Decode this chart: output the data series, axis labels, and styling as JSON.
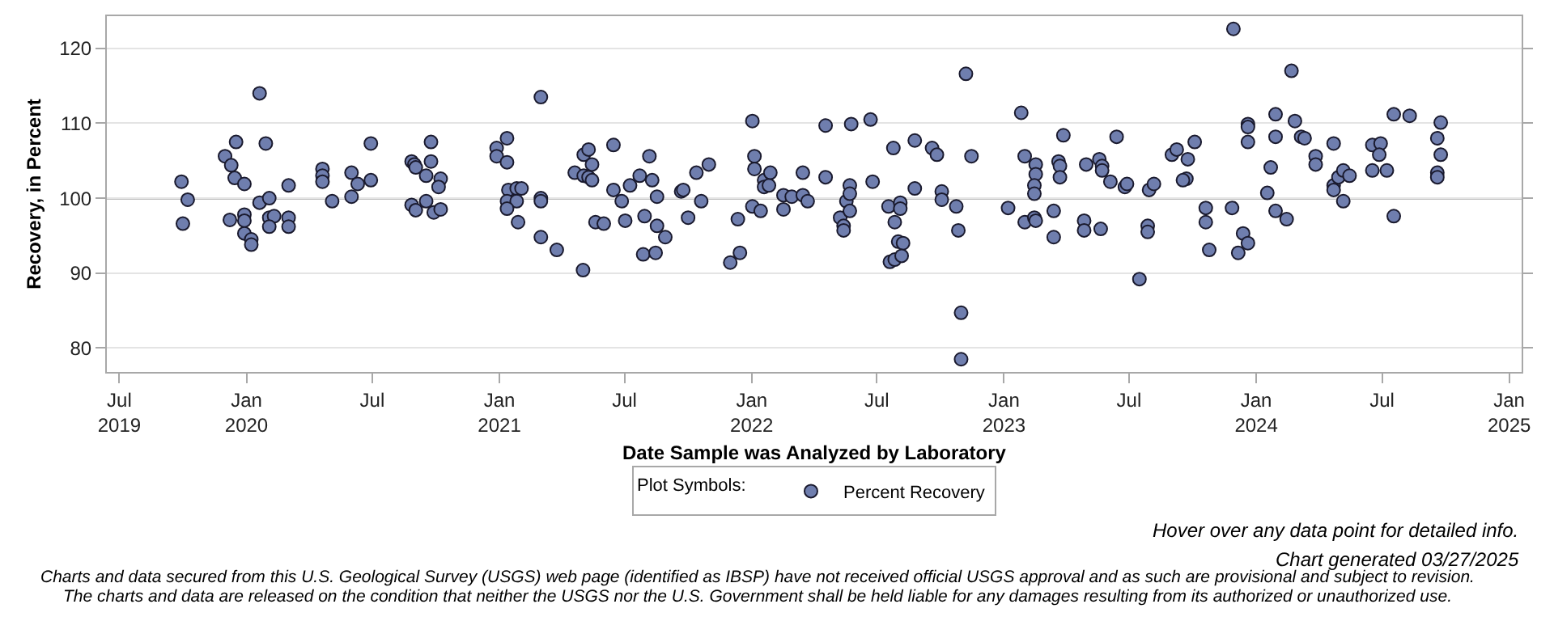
{
  "chart_data": {
    "type": "scatter",
    "xlabel": "Date Sample was Analyzed by Laboratory",
    "ylabel": "Recovery, in Percent",
    "legend_title": "Plot Symbols:",
    "legend": "bottom",
    "grid": "y",
    "marker": "circle",
    "xlim": [
      "2019-06-13",
      "2025-01-19"
    ],
    "xticks": [
      {
        "value": "2019-07-01",
        "label": "Jul\n2019"
      },
      {
        "value": "2020-01-01",
        "label": "Jan\n2020"
      },
      {
        "value": "2020-07-01",
        "label": "Jul"
      },
      {
        "value": "2021-01-01",
        "label": "Jan\n2021"
      },
      {
        "value": "2021-07-01",
        "label": "Jul"
      },
      {
        "value": "2022-01-01",
        "label": "Jan\n2022"
      },
      {
        "value": "2022-07-01",
        "label": "Jul"
      },
      {
        "value": "2023-01-01",
        "label": "Jan\n2023"
      },
      {
        "value": "2023-07-01",
        "label": "Jul"
      },
      {
        "value": "2024-01-01",
        "label": "Jan\n2024"
      },
      {
        "value": "2024-07-01",
        "label": "Jul"
      },
      {
        "value": "2025-01-01",
        "label": "Jan\n2025"
      }
    ],
    "ylim": [
      76.8,
      124.3
    ],
    "yticks": [
      80,
      90,
      100,
      110,
      120
    ],
    "ref_lines": [
      {
        "axis": "y",
        "value": 100,
        "color": "#000000"
      }
    ],
    "annotations": [
      "Hover over any data point for detailed info.",
      "Chart generated 03/27/2025",
      "Charts and data secured from this U.S. Geological Survey (USGS) web page (identified as IBSP) have not received official USGS approval and as such are provisional and subject to revision.",
      "The charts and data are released on the condition that neither the USGS nor the U.S. Government shall be held liable for any damages resulting from its authorized or unauthorized use."
    ],
    "series": [
      {
        "name": "Percent Recovery",
        "color": "#6f7eae",
        "x": [
          "2019-09-29",
          "2019-10-08",
          "2019-10-01",
          "2019-12-01",
          "2019-12-10",
          "2019-12-17",
          "2019-12-15",
          "2019-12-29",
          "2019-12-08",
          "2019-12-29",
          "2019-12-29",
          "2019-12-29",
          "2020-01-08",
          "2020-01-08",
          "2020-01-20",
          "2020-01-29",
          "2020-01-20",
          "2020-02-03",
          "2020-02-03",
          "2020-02-10",
          "2020-02-03",
          "2020-03-02",
          "2020-03-02",
          "2020-03-02",
          "2020-04-20",
          "2020-04-20",
          "2020-04-20",
          "2020-05-04",
          "2020-06-01",
          "2020-06-10",
          "2020-06-01",
          "2020-06-29",
          "2020-06-29",
          "2020-08-27",
          "2020-08-31",
          "2020-09-02",
          "2020-09-24",
          "2020-09-24",
          "2020-09-17",
          "2020-10-08",
          "2020-10-05",
          "2020-08-27",
          "2020-09-02",
          "2020-09-17",
          "2020-09-28",
          "2020-10-08",
          "2020-12-28",
          "2020-12-28",
          "2021-01-12",
          "2021-01-12",
          "2021-01-14",
          "2021-01-26",
          "2021-02-02",
          "2021-01-12",
          "2021-01-26",
          "2021-01-12",
          "2021-01-28",
          "2021-03-02",
          "2021-03-02",
          "2021-03-02",
          "2021-03-02",
          "2021-03-25",
          "2021-04-20",
          "2021-05-03",
          "2021-05-03",
          "2021-05-10",
          "2021-05-10",
          "2021-05-15",
          "2021-05-15",
          "2021-05-02",
          "2021-05-20",
          "2021-06-01",
          "2021-06-15",
          "2021-06-15",
          "2021-06-27",
          "2021-07-02",
          "2021-07-09",
          "2021-07-23",
          "2021-07-30",
          "2021-07-28",
          "2021-08-06",
          "2021-08-10",
          "2021-08-17",
          "2021-08-17",
          "2021-08-15",
          "2021-08-29",
          "2021-09-21",
          "2021-09-24",
          "2021-10-01",
          "2021-10-13",
          "2021-10-20",
          "2021-10-31",
          "2021-12-01",
          "2021-12-15",
          "2021-12-12",
          "2022-01-02",
          "2022-01-05",
          "2022-01-05",
          "2022-01-02",
          "2022-01-14",
          "2022-01-19",
          "2022-01-19",
          "2022-01-26",
          "2022-01-28",
          "2022-02-16",
          "2022-02-28",
          "2022-02-16",
          "2022-03-16",
          "2022-03-16",
          "2022-03-23",
          "2022-04-18",
          "2022-04-18",
          "2022-05-09",
          "2022-05-14",
          "2022-05-14",
          "2022-05-18",
          "2022-05-23",
          "2022-05-23",
          "2022-05-23",
          "2022-05-25",
          "2022-06-22",
          "2022-06-25",
          "2022-07-18",
          "2022-07-25",
          "2022-07-27",
          "2022-08-04",
          "2022-08-04",
          "2022-08-01",
          "2022-08-08",
          "2022-07-20",
          "2022-07-27",
          "2022-08-06",
          "2022-08-25",
          "2022-08-25",
          "2022-09-19",
          "2022-09-26",
          "2022-10-03",
          "2022-10-03",
          "2022-10-24",
          "2022-10-27",
          "2022-11-07",
          "2022-11-15",
          "2022-10-31",
          "2022-10-31",
          "2023-01-07",
          "2023-01-26",
          "2023-01-31",
          "2023-01-31",
          "2023-02-16",
          "2023-02-16",
          "2023-02-14",
          "2023-02-14",
          "2023-02-14",
          "2023-02-16",
          "2023-03-14",
          "2023-03-14",
          "2023-03-28",
          "2023-03-21",
          "2023-03-23",
          "2023-03-23",
          "2023-04-27",
          "2023-04-27",
          "2023-04-30",
          "2023-05-19",
          "2023-05-23",
          "2023-05-23",
          "2023-05-21",
          "2023-06-04",
          "2023-06-13",
          "2023-06-25",
          "2023-06-28",
          "2023-07-16",
          "2023-07-28",
          "2023-07-28",
          "2023-07-30",
          "2023-08-06",
          "2023-09-01",
          "2023-09-08",
          "2023-09-24",
          "2023-09-22",
          "2023-09-17",
          "2023-10-04",
          "2023-10-20",
          "2023-10-20",
          "2023-10-25",
          "2023-11-29",
          "2023-11-27",
          "2023-12-06",
          "2023-12-13",
          "2023-12-20",
          "2023-12-20",
          "2023-12-20",
          "2023-12-20",
          "2024-01-17",
          "2024-01-22",
          "2024-01-29",
          "2024-01-29",
          "2024-01-29",
          "2024-02-14",
          "2024-02-21",
          "2024-02-26",
          "2024-03-06",
          "2024-03-11",
          "2024-03-27",
          "2024-03-27",
          "2024-04-22",
          "2024-04-22",
          "2024-04-22",
          "2024-04-29",
          "2024-05-06",
          "2024-05-06",
          "2024-05-15",
          "2024-06-17",
          "2024-06-17",
          "2024-06-29",
          "2024-06-27",
          "2024-07-08",
          "2024-07-18",
          "2024-07-18",
          "2024-08-10",
          "2024-09-24",
          "2024-09-24",
          "2024-09-19",
          "2024-09-19",
          "2024-09-19"
        ],
        "values": [
          102.2,
          99.8,
          96.6,
          105.6,
          104.4,
          107.5,
          102.7,
          101.9,
          97.1,
          97.8,
          97.0,
          95.3,
          94.5,
          93.8,
          114.0,
          107.3,
          99.4,
          100.0,
          97.4,
          97.6,
          96.2,
          101.7,
          97.4,
          96.2,
          103.9,
          103.0,
          102.2,
          99.6,
          103.4,
          101.9,
          100.2,
          107.3,
          102.4,
          104.9,
          104.5,
          104.1,
          107.5,
          104.9,
          103.0,
          102.6,
          101.5,
          99.1,
          98.4,
          99.6,
          98.1,
          98.5,
          106.7,
          105.6,
          108.0,
          104.8,
          101.1,
          101.3,
          101.3,
          99.6,
          99.6,
          98.6,
          96.8,
          113.5,
          100.0,
          99.6,
          94.8,
          93.1,
          103.4,
          105.8,
          103.0,
          106.5,
          102.8,
          104.5,
          102.4,
          90.4,
          96.8,
          96.6,
          107.1,
          101.1,
          99.6,
          97.0,
          101.7,
          103.0,
          97.6,
          92.5,
          105.6,
          102.4,
          100.2,
          96.3,
          92.7,
          94.8,
          100.9,
          101.1,
          97.4,
          103.4,
          99.6,
          104.5,
          91.4,
          92.7,
          97.2,
          110.3,
          105.6,
          103.9,
          98.9,
          98.3,
          102.4,
          101.5,
          101.7,
          103.4,
          100.4,
          100.2,
          98.5,
          103.4,
          100.4,
          99.6,
          109.7,
          102.8,
          97.4,
          96.3,
          95.7,
          99.6,
          101.7,
          100.6,
          98.3,
          109.9,
          110.5,
          102.2,
          98.9,
          106.7,
          96.8,
          99.4,
          98.6,
          94.2,
          94.0,
          91.5,
          91.8,
          92.3,
          107.7,
          101.3,
          106.7,
          105.8,
          100.9,
          99.8,
          98.9,
          95.7,
          116.6,
          105.6,
          84.7,
          78.5,
          98.7,
          111.4,
          105.6,
          96.8,
          104.5,
          103.2,
          101.7,
          100.6,
          97.4,
          97.0,
          98.3,
          94.8,
          108.4,
          104.9,
          104.3,
          102.8,
          97.0,
          95.7,
          104.5,
          105.2,
          104.3,
          103.7,
          95.9,
          102.2,
          108.2,
          101.5,
          101.9,
          89.2,
          96.3,
          95.5,
          101.1,
          101.9,
          105.8,
          106.5,
          105.2,
          102.6,
          102.4,
          107.5,
          98.7,
          96.8,
          93.1,
          122.6,
          98.7,
          92.7,
          95.3,
          94.0,
          109.9,
          109.5,
          107.5,
          100.7,
          104.1,
          111.2,
          108.2,
          98.3,
          97.2,
          117.0,
          110.3,
          108.2,
          108.0,
          105.6,
          104.5,
          107.3,
          101.7,
          101.1,
          102.8,
          103.7,
          99.6,
          103.0,
          107.1,
          103.7,
          107.3,
          105.8,
          103.7,
          111.2,
          97.6,
          111.0,
          110.1,
          105.8,
          108.0,
          103.4,
          102.8
        ]
      }
    ]
  }
}
